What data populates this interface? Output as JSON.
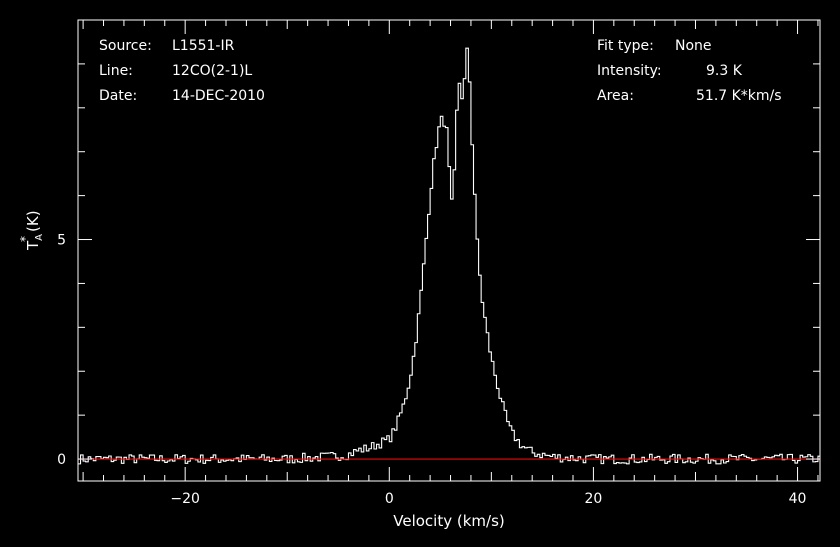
{
  "header": {
    "source_label": "Source:",
    "source_value": "L1551-IR",
    "line_label": "Line:",
    "line_value": "12CO(2-1)L",
    "date_label": "Date:",
    "date_value": "14-DEC-2010",
    "fit_label": "Fit type:",
    "fit_value": "None",
    "intensity_label": "Intensity:",
    "intensity_value": "9.3 K",
    "area_label": "Area:",
    "area_value": "51.7 K*km/s"
  },
  "chart_data": {
    "type": "line",
    "style": "step",
    "xlabel": "Velocity (km/s)",
    "ylabel_main": "T",
    "ylabel_sub": "A",
    "ylabel_sup": "*",
    "ylabel_unit": "(K)",
    "xlim": [
      -30.5,
      42.2
    ],
    "ylim": [
      -0.5,
      10.0
    ],
    "xticks_major": [
      -20,
      0,
      20,
      40
    ],
    "xtick_labels": [
      "−20",
      "0",
      "20",
      "40"
    ],
    "yticks_major": [
      0,
      5
    ],
    "ytick_labels": [
      "0",
      "5"
    ],
    "baseline": 0,
    "colors": {
      "spectrum": "#ffffff",
      "baseline": "#ff0000",
      "axes": "#ffffff"
    },
    "series": [
      {
        "x": [
          -20,
          -10,
          -6,
          -4,
          -3,
          -2,
          -1,
          0,
          0.5,
          1,
          1.5,
          2,
          2.5,
          3,
          3.5,
          4,
          4.5,
          5,
          5.3,
          5.7,
          6.0,
          6.2,
          6.4,
          6.6,
          6.8,
          7.0,
          7.2,
          7.4,
          7.6,
          7.8,
          8.0,
          8.3,
          8.6,
          9,
          9.5,
          10,
          10.5,
          11,
          11.5,
          12,
          13,
          14,
          16,
          20,
          40
        ],
        "y": [
          0,
          0,
          0.05,
          0.1,
          0.2,
          0.25,
          0.35,
          0.45,
          0.65,
          0.95,
          1.3,
          1.8,
          2.5,
          3.5,
          4.7,
          6.0,
          7.0,
          7.7,
          7.75,
          7.4,
          6.0,
          5.7,
          6.6,
          7.8,
          8.5,
          8.7,
          8.0,
          8.7,
          9.3,
          9.1,
          7.8,
          6.4,
          5.0,
          3.8,
          3.0,
          2.3,
          1.8,
          1.3,
          0.9,
          0.6,
          0.3,
          0.15,
          0.05,
          0,
          0
        ]
      }
    ]
  }
}
